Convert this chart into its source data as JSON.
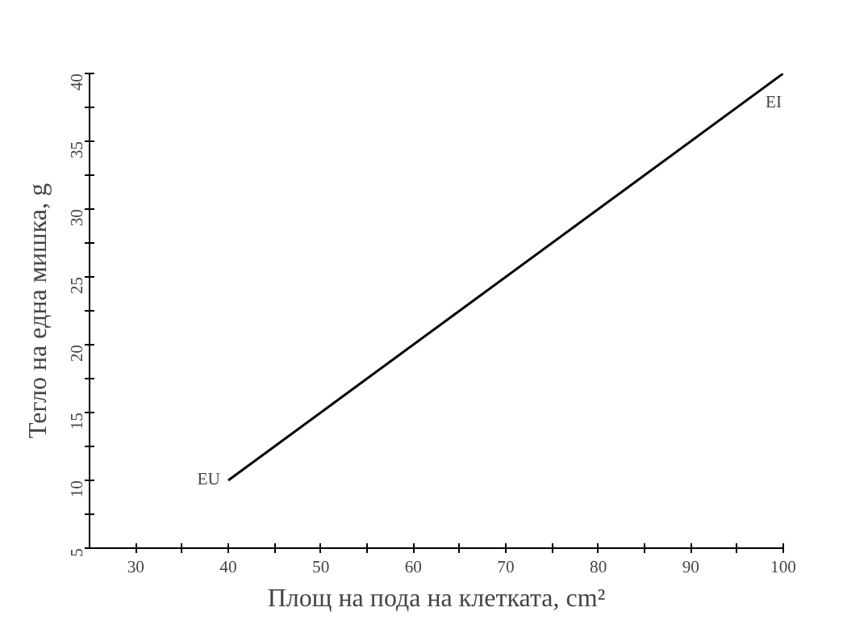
{
  "chart_data": {
    "type": "line",
    "xlabel": "Площ на пода на клетката, cm²",
    "ylabel": "Тегло на една мишка, g",
    "x": [
      40,
      100
    ],
    "series": [
      {
        "color": "#000000",
        "values": [
          10,
          40
        ]
      }
    ],
    "annotations": [
      {
        "text": "EU",
        "x": 40,
        "y": 10
      },
      {
        "text": "EI",
        "x": 100,
        "y": 40
      }
    ],
    "xlim": [
      25,
      100
    ],
    "xticks": [
      30,
      {
        "value": 35,
        "label": null
      },
      40,
      {
        "value": 45,
        "label": null
      },
      50,
      {
        "value": 55,
        "label": null
      },
      60,
      {
        "value": 65,
        "label": null
      },
      70,
      {
        "value": 75,
        "label": null
      },
      80,
      {
        "value": 85,
        "label": null
      },
      90,
      {
        "value": 95,
        "label": null
      },
      100
    ],
    "ylim": [
      5,
      40
    ],
    "yticks": [
      5,
      {
        "value": 7.5,
        "label": null
      },
      10,
      {
        "value": 12.5,
        "label": null
      },
      15,
      {
        "value": 17.5,
        "label": null
      },
      20,
      {
        "value": 22.5,
        "label": null
      },
      25,
      {
        "value": 27.5,
        "label": null
      },
      30,
      {
        "value": 32.5,
        "label": null
      },
      35,
      {
        "value": 37.5,
        "label": null
      },
      40
    ],
    "grid": false,
    "marker": "none",
    "line_style": "solid"
  }
}
